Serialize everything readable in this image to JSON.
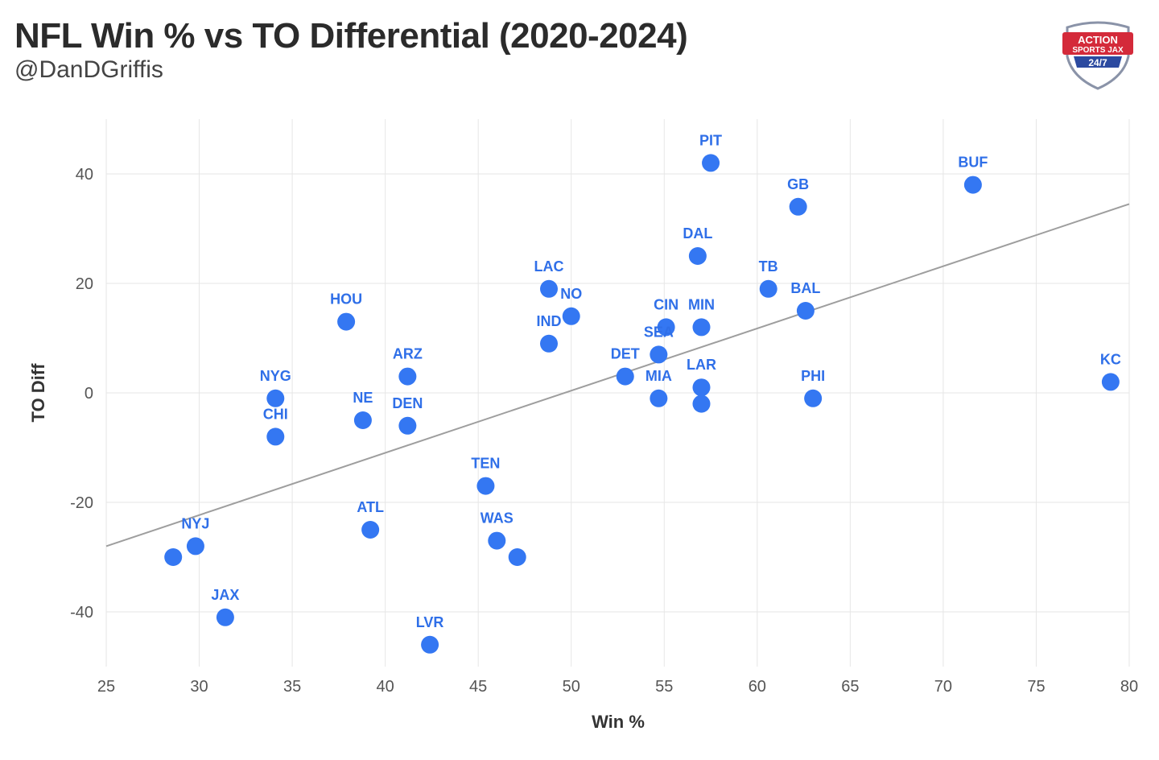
{
  "header": {
    "title": "NFL Win % vs TO Differential (2020-2024)",
    "subtitle": "@DanDGriffis"
  },
  "logo": {
    "line1": "ACTION",
    "line2": "SPORTS JAX",
    "line3": "24/7",
    "icon": "action-sports-jax-shield-logo"
  },
  "colors": {
    "point": "#3477f2",
    "label": "#2f6fe8",
    "trend": "#9e9e9e",
    "grid": "#e6e6e6"
  },
  "chart_data": {
    "type": "scatter",
    "xlabel": "Win %",
    "ylabel": "TO Diff",
    "xlim": [
      25,
      80
    ],
    "ylim": [
      -50,
      50
    ],
    "xticks": [
      25,
      30,
      35,
      40,
      45,
      50,
      55,
      60,
      65,
      70,
      75,
      80
    ],
    "yticks": [
      -40,
      -20,
      0,
      20,
      40
    ],
    "grid": true,
    "trendline": {
      "x": [
        25,
        80
      ],
      "y": [
        -28,
        34.5
      ]
    },
    "points": [
      {
        "x": 57.5,
        "y": 42,
        "label": "PIT"
      },
      {
        "x": 71.6,
        "y": 38,
        "label": "BUF"
      },
      {
        "x": 62.2,
        "y": 34,
        "label": "GB"
      },
      {
        "x": 56.8,
        "y": 25,
        "label": "DAL"
      },
      {
        "x": 48.8,
        "y": 19,
        "label": "LAC"
      },
      {
        "x": 60.6,
        "y": 19,
        "label": "TB"
      },
      {
        "x": 50.0,
        "y": 14,
        "label": "NO"
      },
      {
        "x": 62.6,
        "y": 15,
        "label": "BAL"
      },
      {
        "x": 37.9,
        "y": 13,
        "label": "HOU"
      },
      {
        "x": 55.1,
        "y": 12,
        "label": "CIN"
      },
      {
        "x": 57.0,
        "y": 12,
        "label": "MIN"
      },
      {
        "x": 48.8,
        "y": 9,
        "label": "IND"
      },
      {
        "x": 54.7,
        "y": 7,
        "label": "SEA"
      },
      {
        "x": 52.9,
        "y": 3,
        "label": "DET"
      },
      {
        "x": 41.2,
        "y": 3,
        "label": "ARZ"
      },
      {
        "x": 79.0,
        "y": 2,
        "label": "KC"
      },
      {
        "x": 57.0,
        "y": 1,
        "label": "LAR"
      },
      {
        "x": 34.1,
        "y": -1,
        "label": "NYG"
      },
      {
        "x": 54.7,
        "y": -1,
        "label": "MIA"
      },
      {
        "x": 63.0,
        "y": -1,
        "label": "PHI"
      },
      {
        "x": 57.0,
        "y": -2,
        "label": ""
      },
      {
        "x": 38.8,
        "y": -5,
        "label": "NE"
      },
      {
        "x": 41.2,
        "y": -6,
        "label": "DEN"
      },
      {
        "x": 34.1,
        "y": -8,
        "label": "CHI"
      },
      {
        "x": 45.4,
        "y": -17,
        "label": "TEN"
      },
      {
        "x": 39.2,
        "y": -25,
        "label": "ATL"
      },
      {
        "x": 46.0,
        "y": -27,
        "label": "WAS"
      },
      {
        "x": 29.8,
        "y": -28,
        "label": "NYJ"
      },
      {
        "x": 28.6,
        "y": -30,
        "label": ""
      },
      {
        "x": 47.1,
        "y": -30,
        "label": ""
      },
      {
        "x": 31.4,
        "y": -41,
        "label": "JAX"
      },
      {
        "x": 42.4,
        "y": -46,
        "label": "LVR"
      }
    ]
  }
}
